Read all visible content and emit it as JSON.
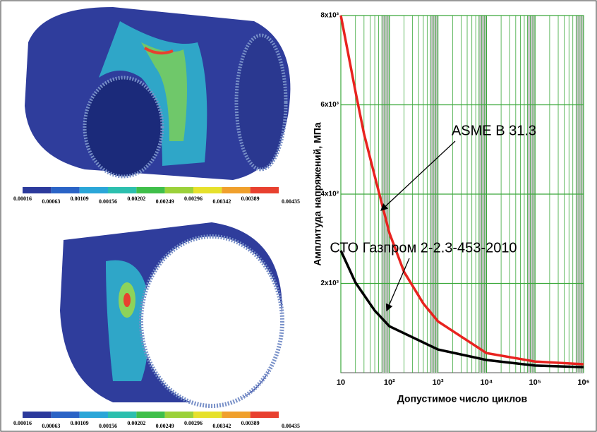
{
  "chart_data": {
    "type": "line",
    "x_label": "Допустимое число циклов",
    "y_label": "Амплитуда напряжений, МПа",
    "xscale": "log",
    "xlim": [
      10,
      1000000
    ],
    "ylim": [
      0,
      8000
    ],
    "grid": true,
    "xticks": [
      10,
      {
        "value": 100,
        "label": "10²"
      },
      {
        "value": 1000,
        "label": "10³"
      },
      {
        "value": 10000,
        "label": "10⁴"
      },
      {
        "value": 100000,
        "label": "10⁵"
      },
      {
        "value": 1000000,
        "label": "10⁶"
      }
    ],
    "yticks": [
      {
        "value": 2000,
        "label": "2x10³"
      },
      {
        "value": 4000,
        "label": "4x10³"
      },
      {
        "value": 6000,
        "label": "6x10³"
      },
      {
        "value": 8000,
        "label": "8x10³"
      }
    ],
    "series": [
      {
        "name": "ASME B 31.3",
        "color": "#e8231f",
        "x": [
          10,
          20,
          30,
          50,
          100,
          200,
          500,
          1000,
          10000,
          100000,
          1000000
        ],
        "values": [
          8000,
          6300,
          5350,
          4400,
          3130,
          2260,
          1550,
          1150,
          440,
          250,
          190
        ]
      },
      {
        "name": "СТО Газпром 2-2.3-453-2010",
        "color": "#000000",
        "x": [
          10,
          20,
          50,
          100,
          1000,
          10000,
          100000,
          1000000
        ],
        "values": [
          2735,
          2020,
          1390,
          1040,
          520,
          285,
          160,
          125
        ]
      }
    ]
  },
  "colorbars": [
    {
      "labels": [
        0.00016,
        0.00063,
        0.00109,
        0.00156,
        0.00202,
        0.00249,
        0.00296,
        0.00342,
        0.00389,
        0.00435
      ]
    },
    {
      "labels": [
        0.00016,
        0.00063,
        0.00109,
        0.00156,
        0.00202,
        0.00249,
        0.00296,
        0.00342,
        0.00389,
        0.00435
      ]
    }
  ]
}
